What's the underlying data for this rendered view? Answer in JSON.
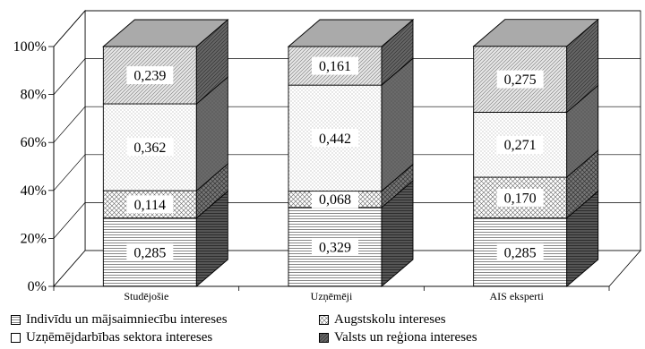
{
  "chart_data": {
    "type": "bar",
    "stacked": "percent",
    "three_d": true,
    "categories": [
      "Studējošie",
      "Uzņēmēji",
      "AIS eksperti"
    ],
    "series": [
      {
        "name": "Indivīdu un mājsaimniecību intereses",
        "values": [
          0.285,
          0.329,
          0.285
        ],
        "pattern": "hlines"
      },
      {
        "name": "Augstskolu intereses",
        "values": [
          0.114,
          0.068,
          0.17
        ],
        "pattern": "crosshatch"
      },
      {
        "name": "Uzņēmējdarbības sektora intereses",
        "values": [
          0.362,
          0.442,
          0.271
        ],
        "pattern": "dots"
      },
      {
        "name": "Valsts un reģiona intereses",
        "values": [
          0.239,
          0.161,
          0.275
        ],
        "pattern": "diagonal"
      }
    ],
    "y_ticks": [
      "0%",
      "20%",
      "40%",
      "60%",
      "80%",
      "100%"
    ],
    "ylim": [
      0,
      1
    ],
    "grid": true,
    "legend": "bottom"
  }
}
